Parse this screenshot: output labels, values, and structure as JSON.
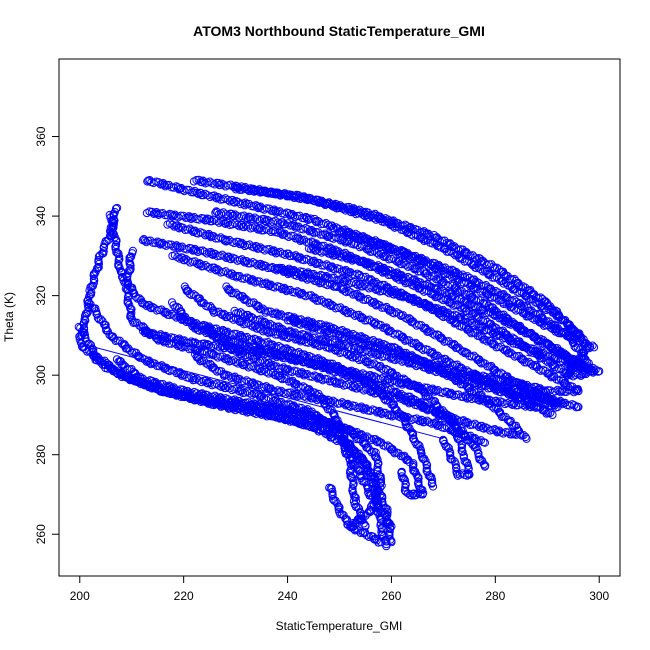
{
  "chart_data": {
    "type": "scatter",
    "title": "ATOM3 Northbound StaticTemperature_GMI",
    "xlabel": "StaticTemperature_GMI",
    "ylabel": "Theta (K)",
    "xlim": [
      196,
      304
    ],
    "ylim": [
      249.5,
      379.5
    ],
    "xticks": [
      "200",
      "220",
      "240",
      "260",
      "280",
      "300"
    ],
    "yticks": [
      "260",
      "280",
      "300",
      "320",
      "340",
      "360"
    ],
    "grid": false,
    "legend": "none",
    "point_style": "open-circle",
    "point_color": "#0000ff",
    "traces": [
      {
        "points": [
          [
            213,
            349
          ],
          [
            222,
            346
          ],
          [
            232,
            343
          ],
          [
            245,
            339
          ],
          [
            258,
            333
          ],
          [
            270,
            326
          ],
          [
            282,
            318
          ],
          [
            292,
            311
          ],
          [
            299,
            307
          ]
        ]
      },
      {
        "points": [
          [
            222,
            349
          ],
          [
            232,
            347
          ],
          [
            245,
            344
          ],
          [
            258,
            339
          ],
          [
            270,
            332
          ],
          [
            282,
            323
          ],
          [
            292,
            315
          ],
          [
            297,
            309
          ]
        ]
      },
      {
        "points": [
          [
            230,
            347
          ],
          [
            242,
            345
          ],
          [
            255,
            341
          ],
          [
            268,
            335
          ],
          [
            280,
            327
          ],
          [
            290,
            318
          ],
          [
            296,
            310
          ]
        ]
      },
      {
        "points": [
          [
            213,
            341
          ],
          [
            225,
            339
          ],
          [
            238,
            336
          ],
          [
            250,
            331
          ],
          [
            262,
            324
          ],
          [
            275,
            316
          ],
          [
            286,
            307
          ],
          [
            294,
            300
          ]
        ]
      },
      {
        "points": [
          [
            226,
            341
          ],
          [
            240,
            338
          ],
          [
            253,
            333
          ],
          [
            266,
            326
          ],
          [
            278,
            318
          ],
          [
            288,
            309
          ],
          [
            296,
            303
          ]
        ]
      },
      {
        "points": [
          [
            217,
            338
          ],
          [
            228,
            334
          ],
          [
            241,
            330
          ],
          [
            254,
            325
          ],
          [
            266,
            318
          ],
          [
            278,
            309
          ],
          [
            288,
            302
          ],
          [
            296,
            296
          ]
        ]
      },
      {
        "points": [
          [
            212,
            334
          ],
          [
            224,
            331
          ],
          [
            237,
            327
          ],
          [
            250,
            322
          ],
          [
            262,
            315
          ],
          [
            274,
            306
          ],
          [
            284,
            298
          ],
          [
            292,
            293
          ]
        ]
      },
      {
        "points": [
          [
            218,
            330
          ],
          [
            230,
            325
          ],
          [
            244,
            320
          ],
          [
            257,
            313
          ],
          [
            270,
            304
          ],
          [
            282,
            296
          ],
          [
            291,
            290
          ]
        ]
      },
      {
        "points": [
          [
            207,
            342
          ],
          [
            206,
            336
          ],
          [
            204,
            330
          ],
          [
            202,
            321
          ],
          [
            201,
            313
          ],
          [
            200,
            309
          ]
        ]
      },
      {
        "points": [
          [
            200,
            312
          ],
          [
            203,
            305
          ],
          [
            208,
            300
          ],
          [
            216,
            296
          ],
          [
            228,
            292
          ],
          [
            240,
            289
          ],
          [
            250,
            285
          ],
          [
            255,
            278
          ],
          [
            257,
            270
          ],
          [
            258,
            262
          ],
          [
            259,
            257
          ]
        ]
      },
      {
        "points": [
          [
            200,
            308
          ],
          [
            205,
            302
          ],
          [
            212,
            298
          ],
          [
            222,
            294
          ],
          [
            234,
            291
          ],
          [
            245,
            287
          ],
          [
            252,
            282
          ],
          [
            256,
            276
          ],
          [
            259,
            266
          ],
          [
            260,
            258
          ]
        ]
      },
      {
        "points": [
          [
            202,
            318
          ],
          [
            206,
            310
          ],
          [
            212,
            304
          ],
          [
            222,
            299
          ],
          [
            234,
            295
          ],
          [
            244,
            291
          ],
          [
            250,
            286
          ],
          [
            252,
            278
          ],
          [
            253,
            268
          ],
          [
            255,
            262
          ]
        ]
      },
      {
        "points": [
          [
            210,
            331
          ],
          [
            209,
            322
          ],
          [
            210,
            314
          ],
          [
            215,
            309
          ],
          [
            226,
            305
          ],
          [
            238,
            300
          ],
          [
            246,
            295
          ],
          [
            250,
            288
          ],
          [
            252,
            280
          ],
          [
            256,
            270
          ],
          [
            260,
            262
          ]
        ]
      },
      {
        "points": [
          [
            206,
            340
          ],
          [
            208,
            325
          ],
          [
            212,
            318
          ],
          [
            222,
            313
          ],
          [
            236,
            308
          ],
          [
            248,
            303
          ],
          [
            256,
            298
          ],
          [
            262,
            290
          ],
          [
            266,
            280
          ],
          [
            268,
            272
          ]
        ]
      },
      {
        "points": [
          [
            220,
            322
          ],
          [
            226,
            316
          ],
          [
            236,
            311
          ],
          [
            248,
            307
          ],
          [
            258,
            302
          ],
          [
            266,
            296
          ],
          [
            272,
            288
          ],
          [
            274,
            280
          ],
          [
            275,
            275
          ]
        ]
      },
      {
        "points": [
          [
            218,
            318
          ],
          [
            222,
            312
          ],
          [
            230,
            308
          ],
          [
            242,
            304
          ],
          [
            254,
            299
          ],
          [
            264,
            294
          ],
          [
            272,
            288
          ],
          [
            276,
            282
          ],
          [
            278,
            277
          ]
        ]
      },
      {
        "points": [
          [
            228,
            322
          ],
          [
            236,
            316
          ],
          [
            248,
            312
          ],
          [
            260,
            307
          ],
          [
            270,
            301
          ],
          [
            278,
            294
          ],
          [
            283,
            288
          ],
          [
            286,
            284
          ]
        ]
      },
      {
        "points": [
          [
            224,
            312
          ],
          [
            230,
            306
          ],
          [
            238,
            302
          ],
          [
            250,
            298
          ],
          [
            262,
            294
          ],
          [
            272,
            289
          ],
          [
            280,
            286
          ],
          [
            284,
            285
          ]
        ]
      },
      {
        "points": [
          [
            222,
            305
          ],
          [
            228,
            300
          ],
          [
            238,
            296
          ],
          [
            250,
            293
          ],
          [
            260,
            290
          ],
          [
            268,
            288
          ],
          [
            274,
            285
          ],
          [
            278,
            283
          ]
        ]
      },
      {
        "points": [
          [
            230,
            316
          ],
          [
            240,
            311
          ],
          [
            252,
            307
          ],
          [
            264,
            303
          ],
          [
            276,
            298
          ],
          [
            286,
            294
          ],
          [
            292,
            292
          ]
        ]
      },
      {
        "points": [
          [
            212,
            311
          ],
          [
            222,
            308
          ],
          [
            234,
            306
          ],
          [
            248,
            302
          ],
          [
            262,
            298
          ],
          [
            276,
            294
          ],
          [
            288,
            292
          ]
        ]
      },
      {
        "points": [
          [
            208,
            300
          ],
          [
            216,
            296
          ],
          [
            228,
            293
          ],
          [
            240,
            291
          ],
          [
            250,
            287
          ],
          [
            258,
            283
          ],
          [
            264,
            278
          ],
          [
            266,
            270
          ]
        ]
      },
      {
        "points": [
          [
            207,
            304
          ],
          [
            212,
            299
          ],
          [
            220,
            296
          ],
          [
            232,
            293
          ],
          [
            244,
            290
          ],
          [
            252,
            286
          ],
          [
            257,
            280
          ],
          [
            258,
            272
          ],
          [
            256,
            266
          ],
          [
            252,
            262
          ]
        ]
      },
      {
        "points": [
          [
            238,
            327
          ],
          [
            250,
            324
          ],
          [
            262,
            320
          ],
          [
            274,
            314
          ],
          [
            284,
            308
          ],
          [
            292,
            304
          ],
          [
            299,
            301
          ]
        ]
      },
      {
        "points": [
          [
            244,
            332
          ],
          [
            256,
            328
          ],
          [
            268,
            322
          ],
          [
            280,
            315
          ],
          [
            290,
            308
          ],
          [
            297,
            302
          ]
        ]
      },
      {
        "points": [
          [
            250,
            336
          ],
          [
            262,
            331
          ],
          [
            274,
            325
          ],
          [
            286,
            317
          ],
          [
            294,
            310
          ],
          [
            298,
            303
          ]
        ]
      },
      {
        "points": [
          [
            240,
            314
          ],
          [
            250,
            310
          ],
          [
            262,
            305
          ],
          [
            274,
            300
          ],
          [
            284,
            296
          ],
          [
            292,
            293
          ]
        ]
      },
      {
        "points": [
          [
            270,
            284
          ],
          [
            272,
            278
          ],
          [
            273,
            275
          ],
          [
            275,
            275
          ]
        ]
      },
      {
        "points": [
          [
            248,
            272
          ],
          [
            250,
            266
          ],
          [
            252,
            262
          ],
          [
            255,
            260
          ],
          [
            258,
            258
          ]
        ]
      },
      {
        "points": [
          [
            262,
            276
          ],
          [
            263,
            270
          ],
          [
            266,
            270
          ]
        ]
      },
      {
        "points": [
          [
            284,
            296
          ],
          [
            290,
            294
          ],
          [
            296,
            292
          ]
        ]
      },
      {
        "points": [
          [
            276,
            300
          ],
          [
            284,
            298
          ],
          [
            290,
            296
          ],
          [
            296,
            296
          ]
        ]
      },
      {
        "points": [
          [
            294,
            303
          ],
          [
            298,
            302
          ],
          [
            300,
            301
          ]
        ]
      },
      {
        "points": [
          [
            298,
            307
          ],
          [
            296,
            304
          ],
          [
            294,
            300
          ],
          [
            296,
            300
          ],
          [
            299,
            301
          ]
        ]
      }
    ],
    "lines": [
      {
        "points": [
          [
            200,
            308
          ],
          [
            270,
            284
          ]
        ]
      },
      {
        "points": [
          [
            286,
            305
          ],
          [
            298,
            302
          ]
        ]
      }
    ]
  }
}
